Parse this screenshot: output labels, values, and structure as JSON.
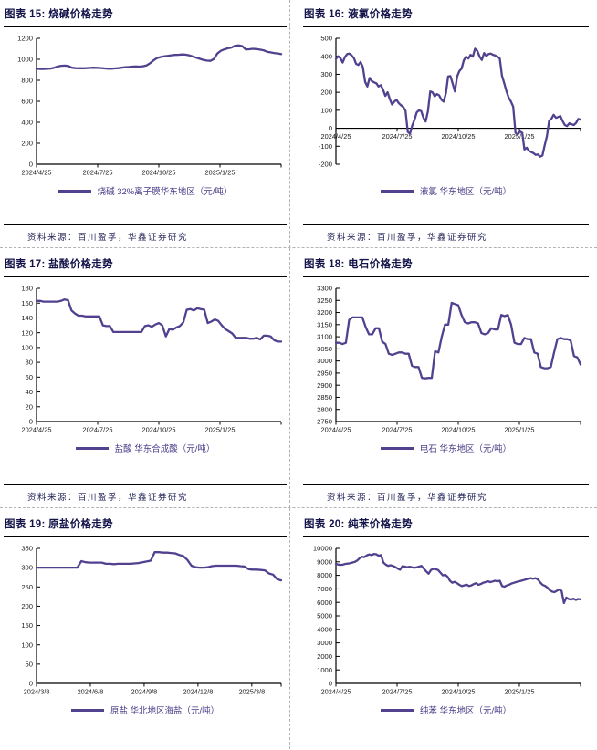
{
  "source_note": "资料来源：百川盈孚，华鑫证券研究",
  "colors": {
    "line": "#52418f",
    "title": "#14144b",
    "legend_text": "#453a86",
    "source_text": "#26265a",
    "axis": "#000000"
  },
  "chart_data": [
    {
      "type": "line",
      "title": "图表 15: 烧碱价格走势",
      "legend": "烧碱 32%离子膜华东地区（元/吨）",
      "ylim": [
        0,
        1200
      ],
      "ystep": 200,
      "x_tick_labels": [
        "2024/4/25",
        "2024/7/25",
        "2024/10/25",
        "2025/1/25"
      ],
      "x_tick_pos": [
        0,
        0.25,
        0.5,
        0.75
      ],
      "x_axis_at_zero": false,
      "values": [
        910,
        908,
        908,
        910,
        912,
        920,
        932,
        938,
        940,
        936,
        920,
        916,
        915,
        915,
        916,
        918,
        920,
        919,
        917,
        914,
        911,
        910,
        913,
        916,
        920,
        924,
        927,
        930,
        932,
        930,
        934,
        942,
        962,
        990,
        1012,
        1022,
        1028,
        1033,
        1038,
        1042,
        1043,
        1046,
        1044,
        1038,
        1028,
        1016,
        1005,
        995,
        988,
        985,
        1002,
        1055,
        1082,
        1095,
        1105,
        1112,
        1130,
        1132,
        1126,
        1094,
        1096,
        1100,
        1097,
        1092,
        1086,
        1072,
        1066,
        1060,
        1056,
        1050
      ]
    },
    {
      "type": "line",
      "title": "图表 16: 液氯价格走势",
      "legend": "液氯 华东地区（元/吨）",
      "ylim": [
        -200,
        500
      ],
      "ystep": 100,
      "x_tick_labels": [
        "2024/4/25",
        "2024/7/25",
        "2024/10/25",
        "2025/1/25"
      ],
      "x_tick_pos": [
        0,
        0.25,
        0.5,
        0.75
      ],
      "x_axis_at_zero": true,
      "values": [
        385,
        400,
        390,
        365,
        395,
        412,
        415,
        405,
        390,
        358,
        352,
        368,
        340,
        258,
        232,
        280,
        262,
        255,
        250,
        232,
        240,
        215,
        180,
        200,
        162,
        132,
        148,
        158,
        140,
        128,
        118,
        98,
        -20,
        -30,
        15,
        48,
        88,
        100,
        95,
        58,
        38,
        95,
        205,
        200,
        178,
        190,
        183,
        158,
        148,
        195,
        288,
        290,
        248,
        205,
        288,
        318,
        332,
        378,
        398,
        388,
        408,
        398,
        442,
        430,
        398,
        380,
        418,
        402,
        412,
        415,
        408,
        404,
        398,
        388,
        292,
        250,
        205,
        170,
        148,
        120,
        -25,
        -35,
        -18,
        -25,
        -118,
        -108,
        -125,
        -132,
        -138,
        -148,
        -145,
        -158,
        -152,
        -95,
        -45,
        42,
        52,
        75,
        58,
        62,
        68,
        40,
        18,
        12,
        28,
        22,
        18,
        30,
        52,
        48
      ]
    },
    {
      "type": "line",
      "title": "图表 17: 盐酸价格走势",
      "legend": "盐酸 华东合成酸（元/吨）",
      "ylim": [
        0,
        180
      ],
      "ystep": 20,
      "x_tick_labels": [
        "2024/4/25",
        "2024/7/25",
        "2024/10/25",
        "2025/1/25"
      ],
      "x_tick_pos": [
        0,
        0.25,
        0.5,
        0.75
      ],
      "x_axis_at_zero": false,
      "values": [
        163,
        163,
        162,
        162,
        162,
        162,
        162,
        163,
        165,
        164,
        150,
        146,
        143,
        143,
        142,
        142,
        142,
        142,
        142,
        130,
        129,
        129,
        121,
        121,
        121,
        121,
        121,
        121,
        121,
        121,
        121,
        129,
        130,
        128,
        131,
        133,
        130,
        115,
        125,
        124,
        127,
        129,
        134,
        151,
        152,
        150,
        153,
        152,
        151,
        133,
        135,
        138,
        136,
        130,
        125,
        122,
        119,
        113,
        113,
        113,
        113,
        112,
        112,
        113,
        111,
        116,
        116,
        115,
        110,
        108,
        108
      ]
    },
    {
      "type": "line",
      "title": "图表 18: 电石价格走势",
      "legend": "电石 华东地区（元/吨）",
      "ylim": [
        2750,
        3300
      ],
      "ystep": 50,
      "x_tick_labels": [
        "2024/4/25",
        "2024/7/25",
        "2024/10/25",
        "2025/1/25"
      ],
      "x_tick_pos": [
        0,
        0.25,
        0.5,
        0.75
      ],
      "x_axis_at_zero": false,
      "values": [
        3075,
        3075,
        3070,
        3075,
        3170,
        3180,
        3180,
        3180,
        3180,
        3140,
        3110,
        3110,
        3135,
        3135,
        3080,
        3070,
        3030,
        3025,
        3030,
        3035,
        3035,
        3030,
        3030,
        2980,
        2975,
        2975,
        2930,
        2928,
        2930,
        2930,
        3040,
        3035,
        3100,
        3150,
        3150,
        3240,
        3235,
        3230,
        3190,
        3160,
        3155,
        3160,
        3160,
        3155,
        3115,
        3110,
        3115,
        3135,
        3130,
        3130,
        3190,
        3185,
        3190,
        3150,
        3075,
        3070,
        3070,
        3095,
        3090,
        3090,
        3035,
        3030,
        2975,
        2970,
        2970,
        2975,
        3035,
        3090,
        3095,
        3090,
        3090,
        3085,
        3020,
        3015,
        2985
      ]
    },
    {
      "type": "line",
      "title": "图表 19: 原盐价格走势",
      "legend": "原盐 华北地区海盐（元/吨）",
      "ylim": [
        0,
        350
      ],
      "ystep": 50,
      "x_tick_labels": [
        "2024/3/8",
        "2024/6/8",
        "2024/9/8",
        "2024/12/8",
        "2025/3/8"
      ],
      "x_tick_pos": [
        0,
        0.22,
        0.44,
        0.66,
        0.88
      ],
      "x_axis_at_zero": false,
      "values": [
        300,
        300,
        300,
        300,
        300,
        300,
        300,
        300,
        300,
        300,
        300,
        317,
        314,
        313,
        313,
        313,
        313,
        310,
        310,
        309,
        310,
        310,
        310,
        310,
        311,
        312,
        314,
        316,
        318,
        340,
        340,
        339,
        339,
        338,
        337,
        333,
        330,
        320,
        305,
        301,
        300,
        300,
        301,
        304,
        305,
        305,
        305,
        305,
        305,
        305,
        304,
        303,
        296,
        295,
        295,
        294,
        293,
        285,
        282,
        270,
        267
      ]
    },
    {
      "type": "line",
      "title": "图表 20: 纯苯价格走势",
      "legend": "纯苯 华东地区（元/吨）",
      "ylim": [
        0,
        10000
      ],
      "ystep": 1000,
      "x_tick_labels": [
        "2024/4/25",
        "2024/7/25",
        "2024/10/25",
        "2025/1/25"
      ],
      "x_tick_pos": [
        0,
        0.25,
        0.5,
        0.75
      ],
      "x_axis_at_zero": false,
      "values": [
        8850,
        8800,
        8780,
        8800,
        8850,
        8870,
        8900,
        8950,
        9000,
        9100,
        9280,
        9380,
        9350,
        9480,
        9550,
        9500,
        9580,
        9560,
        9450,
        9500,
        8950,
        8800,
        8700,
        8750,
        8700,
        8620,
        8500,
        8420,
        8680,
        8650,
        8600,
        8640,
        8600,
        8560,
        8600,
        8650,
        8700,
        8500,
        8300,
        8120,
        8400,
        8480,
        8450,
        8400,
        8200,
        8000,
        8050,
        7900,
        7600,
        7450,
        7520,
        7420,
        7300,
        7200,
        7260,
        7310,
        7210,
        7260,
        7350,
        7420,
        7300,
        7360,
        7450,
        7500,
        7560,
        7500,
        7550,
        7600,
        7560,
        7600,
        7200,
        7160,
        7260,
        7310,
        7400,
        7450,
        7510,
        7550,
        7600,
        7650,
        7700,
        7750,
        7790,
        7750,
        7800,
        7700,
        7480,
        7300,
        7220,
        7100,
        6900,
        6800,
        6760,
        6860,
        6950,
        6850,
        5950,
        6350,
        6250,
        6200,
        6280,
        6180,
        6250,
        6220
      ]
    }
  ]
}
